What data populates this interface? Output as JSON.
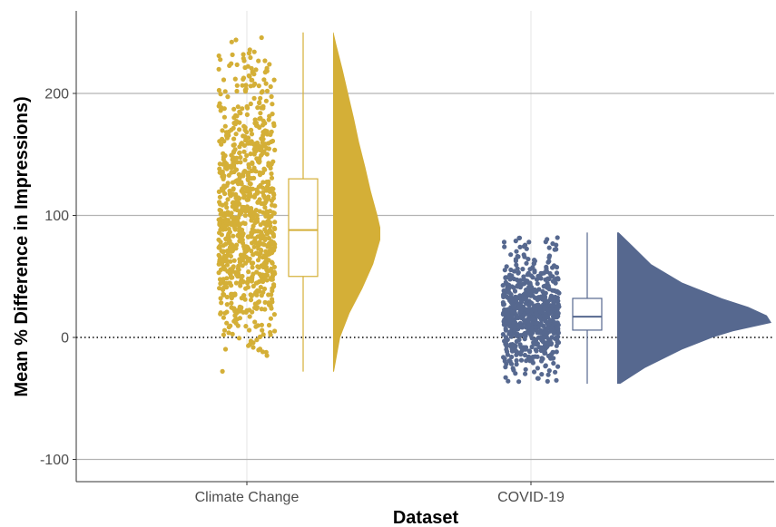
{
  "chart_data": {
    "type": "raincloud",
    "xlabel": "Dataset",
    "ylabel": "Mean % Difference in Impressions)",
    "categories": [
      "Climate Change",
      "COVID-19"
    ],
    "ylim": [
      -115,
      265
    ],
    "yticks": [
      -100,
      0,
      100,
      200
    ],
    "ytick_labels": [
      "-100",
      "0",
      "100",
      "200"
    ],
    "reference_line": {
      "y": 0,
      "style": "dotted"
    },
    "grid": true,
    "series": [
      {
        "category": "Climate Change",
        "color": "#d4af37",
        "n_points": 900,
        "min": -28,
        "q1": 50,
        "median": 88,
        "q3": 130,
        "max": 250,
        "density": [
          [
            -28,
            0.02
          ],
          [
            0,
            0.15
          ],
          [
            20,
            0.35
          ],
          [
            40,
            0.62
          ],
          [
            60,
            0.85
          ],
          [
            80,
            1.0
          ],
          [
            90,
            1.0
          ],
          [
            100,
            0.94
          ],
          [
            120,
            0.8
          ],
          [
            140,
            0.68
          ],
          [
            160,
            0.55
          ],
          [
            180,
            0.44
          ],
          [
            200,
            0.32
          ],
          [
            220,
            0.2
          ],
          [
            240,
            0.07
          ],
          [
            250,
            0.01
          ]
        ]
      },
      {
        "category": "COVID-19",
        "color": "#56688f",
        "n_points": 700,
        "min": -38,
        "q1": 6,
        "median": 17,
        "q3": 32,
        "max": 86,
        "density": [
          [
            -38,
            0.02
          ],
          [
            -25,
            0.18
          ],
          [
            -10,
            0.42
          ],
          [
            0,
            0.62
          ],
          [
            5,
            0.75
          ],
          [
            12,
            1.0
          ],
          [
            18,
            0.97
          ],
          [
            25,
            0.85
          ],
          [
            32,
            0.68
          ],
          [
            45,
            0.42
          ],
          [
            60,
            0.22
          ],
          [
            75,
            0.1
          ],
          [
            86,
            0.01
          ]
        ]
      }
    ]
  }
}
